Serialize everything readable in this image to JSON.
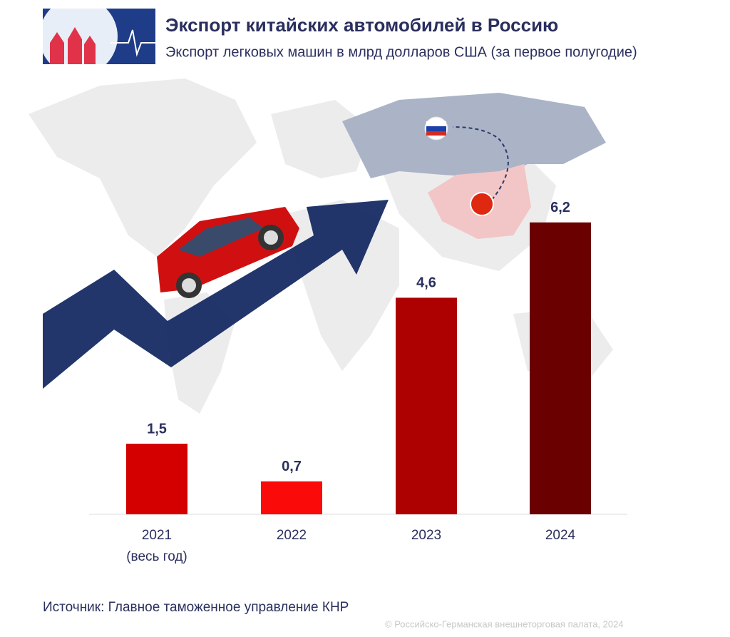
{
  "chart_data": {
    "type": "bar",
    "title": "Экспорт китайских автомобилей в Россию",
    "subtitle": "Экспорт легковых машин в млрд долларов США (за первое полугодие)",
    "categories": [
      "2021\n(весь год)",
      "2022",
      "2023",
      "2024"
    ],
    "values": [
      1.5,
      0.7,
      4.6,
      6.2
    ],
    "value_labels": [
      "1,5",
      "0,7",
      "4,6",
      "6,2"
    ],
    "colors": [
      "#d40000",
      "#fb0a0a",
      "#ad0000",
      "#6b0000"
    ],
    "source": "Источник: Главное таможенное управление КНР",
    "copyright": "© Российско-Германская внешнеторговая палата, 2024"
  }
}
